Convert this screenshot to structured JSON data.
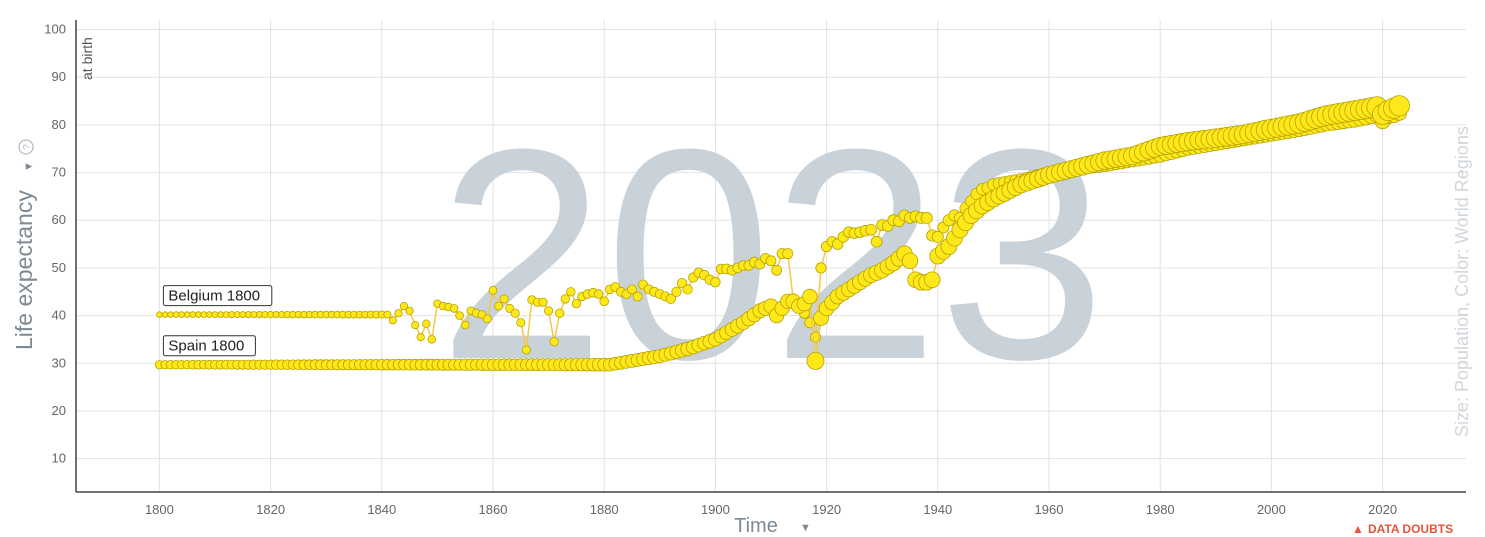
{
  "chart_data": {
    "type": "scatter",
    "year_watermark": "2023",
    "y_axis": {
      "title": "Life expectancy",
      "subtitle": "at birth",
      "min": 3,
      "max": 102,
      "ticks": [
        10,
        20,
        30,
        40,
        50,
        60,
        70,
        80,
        90,
        100
      ]
    },
    "x_axis": {
      "title": "Time",
      "min": 1785,
      "max": 2035,
      "ticks": [
        1800,
        1820,
        1840,
        1860,
        1880,
        1900,
        1920,
        1940,
        1960,
        1980,
        2000,
        2020
      ]
    },
    "size_color_label": "Size: Population, Color: World Regions",
    "help_icon": "question-circle-icon",
    "data_doubts": "DATA DOUBTS",
    "grid": true,
    "marker_color": "#ffe81a",
    "marker_stroke": "#b5a300",
    "line_color": "#f5c84a",
    "series": [
      {
        "name": "Belgium",
        "start_label": "Belgium 1800",
        "points": [
          [
            1800,
            40.2
          ],
          [
            1841,
            40.2
          ],
          [
            1842,
            39
          ],
          [
            1843,
            40.5
          ],
          [
            1844,
            42
          ],
          [
            1845,
            41
          ],
          [
            1846,
            38
          ],
          [
            1847,
            35.5
          ],
          [
            1848,
            38.3
          ],
          [
            1849,
            35
          ],
          [
            1850,
            42.5
          ],
          [
            1851,
            42
          ],
          [
            1852,
            41.8
          ],
          [
            1853,
            41.5
          ],
          [
            1854,
            40
          ],
          [
            1855,
            38
          ],
          [
            1856,
            41
          ],
          [
            1857,
            40.5
          ],
          [
            1858,
            40.2
          ],
          [
            1859,
            39.3
          ],
          [
            1860,
            45.3
          ],
          [
            1861,
            42
          ],
          [
            1862,
            43.5
          ],
          [
            1863,
            41.5
          ],
          [
            1864,
            40.5
          ],
          [
            1865,
            38.5
          ],
          [
            1866,
            32.8
          ],
          [
            1867,
            43.3
          ],
          [
            1868,
            42.8
          ],
          [
            1869,
            42.8
          ],
          [
            1870,
            41
          ],
          [
            1871,
            34.5
          ],
          [
            1872,
            40.5
          ],
          [
            1873,
            43.5
          ],
          [
            1874,
            45
          ],
          [
            1875,
            42.5
          ],
          [
            1876,
            44
          ],
          [
            1877,
            44.5
          ],
          [
            1878,
            44.8
          ],
          [
            1879,
            44.5
          ],
          [
            1880,
            43
          ],
          [
            1881,
            45.5
          ],
          [
            1882,
            46
          ],
          [
            1883,
            45
          ],
          [
            1884,
            44.5
          ],
          [
            1885,
            45.5
          ],
          [
            1886,
            44
          ],
          [
            1887,
            46.5
          ],
          [
            1888,
            45.5
          ],
          [
            1889,
            45
          ],
          [
            1890,
            44.5
          ],
          [
            1891,
            44
          ],
          [
            1892,
            43.5
          ],
          [
            1893,
            45
          ],
          [
            1894,
            46.8
          ],
          [
            1895,
            45.5
          ],
          [
            1896,
            48
          ],
          [
            1897,
            49
          ],
          [
            1898,
            48.5
          ],
          [
            1899,
            47.5
          ],
          [
            1900,
            47
          ],
          [
            1901,
            49.8
          ],
          [
            1902,
            49.8
          ],
          [
            1903,
            49.5
          ],
          [
            1904,
            50
          ],
          [
            1905,
            50.5
          ],
          [
            1906,
            50.5
          ],
          [
            1907,
            51.2
          ],
          [
            1908,
            50.8
          ],
          [
            1909,
            52
          ],
          [
            1910,
            51.5
          ],
          [
            1911,
            49.5
          ],
          [
            1912,
            53
          ],
          [
            1913,
            53
          ],
          [
            1914,
            43.5
          ],
          [
            1915,
            42.5
          ],
          [
            1916,
            40.5
          ],
          [
            1917,
            38.5
          ],
          [
            1918,
            35.5
          ],
          [
            1919,
            50
          ],
          [
            1920,
            54.5
          ],
          [
            1921,
            55.5
          ],
          [
            1922,
            55
          ],
          [
            1923,
            56.5
          ],
          [
            1924,
            57.5
          ],
          [
            1925,
            57.3
          ],
          [
            1926,
            57.5
          ],
          [
            1927,
            57.8
          ],
          [
            1928,
            58
          ],
          [
            1929,
            55.5
          ],
          [
            1930,
            59
          ],
          [
            1931,
            58.8
          ],
          [
            1932,
            60
          ],
          [
            1933,
            59.8
          ],
          [
            1934,
            61
          ],
          [
            1935,
            60.5
          ],
          [
            1936,
            60.8
          ],
          [
            1937,
            60.5
          ],
          [
            1938,
            60.5
          ],
          [
            1939,
            56.8
          ],
          [
            1940,
            56.5
          ],
          [
            1941,
            58.5
          ],
          [
            1942,
            60
          ],
          [
            1943,
            61
          ],
          [
            1944,
            60.5
          ],
          [
            1945,
            62.5
          ],
          [
            1946,
            64
          ],
          [
            1947,
            65.5
          ],
          [
            1948,
            66.5
          ],
          [
            1949,
            66.8
          ],
          [
            1950,
            67.5
          ],
          [
            1955,
            68.5
          ],
          [
            1960,
            70
          ],
          [
            1965,
            70.8
          ],
          [
            1970,
            71.5
          ],
          [
            1975,
            72.5
          ],
          [
            1980,
            73.5
          ],
          [
            1985,
            75
          ],
          [
            1990,
            76
          ],
          [
            1995,
            77
          ],
          [
            2000,
            78
          ],
          [
            2005,
            79
          ],
          [
            2010,
            80.2
          ],
          [
            2015,
            81
          ],
          [
            2019,
            82
          ],
          [
            2020,
            80.7
          ],
          [
            2021,
            81.8
          ],
          [
            2022,
            82
          ],
          [
            2023,
            82.5
          ]
        ]
      },
      {
        "name": "Spain",
        "start_label": "Spain 1800",
        "points": [
          [
            1800,
            29.7
          ],
          [
            1881,
            29.7
          ],
          [
            1885,
            30.5
          ],
          [
            1890,
            31.5
          ],
          [
            1895,
            33
          ],
          [
            1900,
            35
          ],
          [
            1905,
            38.5
          ],
          [
            1908,
            41
          ],
          [
            1910,
            42
          ],
          [
            1911,
            40
          ],
          [
            1912,
            41.5
          ],
          [
            1913,
            43
          ],
          [
            1914,
            43
          ],
          [
            1915,
            42
          ],
          [
            1916,
            42.5
          ],
          [
            1917,
            44
          ],
          [
            1918,
            30.5
          ],
          [
            1919,
            39.5
          ],
          [
            1920,
            41.5
          ],
          [
            1922,
            44
          ],
          [
            1924,
            45.5
          ],
          [
            1926,
            47
          ],
          [
            1928,
            48.5
          ],
          [
            1930,
            49.5
          ],
          [
            1932,
            51
          ],
          [
            1934,
            53
          ],
          [
            1935,
            51.5
          ],
          [
            1936,
            47.5
          ],
          [
            1937,
            47
          ],
          [
            1938,
            47
          ],
          [
            1939,
            47.5
          ],
          [
            1940,
            52.5
          ],
          [
            1942,
            54.5
          ],
          [
            1944,
            58
          ],
          [
            1946,
            61
          ],
          [
            1948,
            63
          ],
          [
            1950,
            64.5
          ],
          [
            1955,
            67.5
          ],
          [
            1960,
            69.5
          ],
          [
            1965,
            71
          ],
          [
            1970,
            72.5
          ],
          [
            1975,
            73.5
          ],
          [
            1980,
            75.5
          ],
          [
            1985,
            76.5
          ],
          [
            1990,
            77.2
          ],
          [
            1995,
            78
          ],
          [
            2000,
            79.2
          ],
          [
            2005,
            80.3
          ],
          [
            2010,
            82
          ],
          [
            2015,
            83
          ],
          [
            2019,
            83.8
          ],
          [
            2020,
            82.2
          ],
          [
            2021,
            83
          ],
          [
            2022,
            83.5
          ],
          [
            2023,
            84
          ]
        ]
      }
    ]
  }
}
